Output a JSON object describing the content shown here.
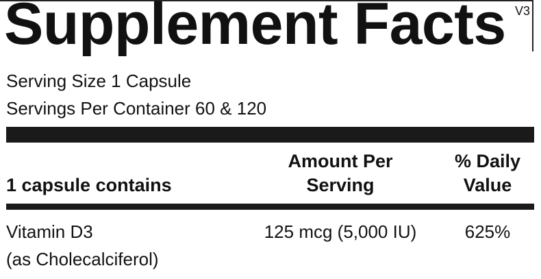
{
  "header": {
    "title": "Supplement Facts",
    "version": "V3"
  },
  "serving": {
    "size": "Serving Size 1 Capsule",
    "per_container": "Servings Per Container 60 & 120"
  },
  "table": {
    "columns": [
      "1 capsule contains",
      "Amount Per Serving",
      "% Daily Value"
    ],
    "rows": [
      {
        "name": "Vitamin D3",
        "form": "(as Cholecalciferol)",
        "amount": "125 mcg (5,000 IU)",
        "daily_value": "625%"
      }
    ]
  }
}
